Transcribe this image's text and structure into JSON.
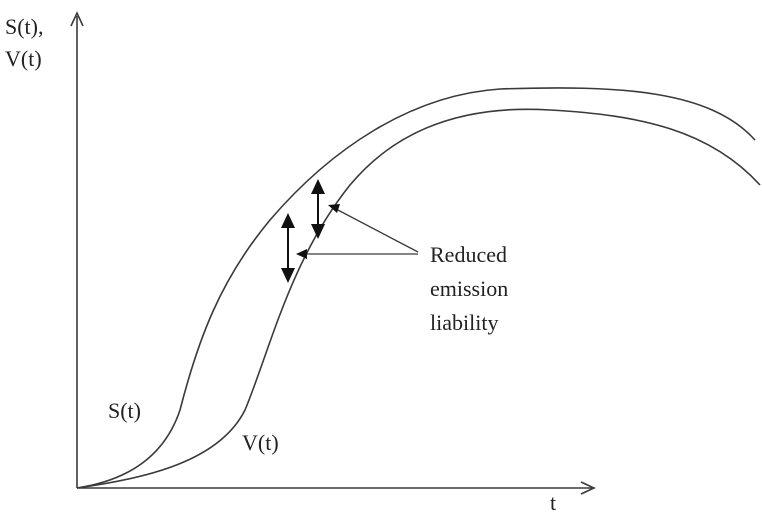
{
  "chart_data": {
    "type": "line",
    "title": "",
    "ylabel_lines": [
      "S(t),",
      "V(t)"
    ],
    "xlabel": "t",
    "grid": false,
    "series": [
      {
        "name": "S(t)"
      },
      {
        "name": "V(t)"
      }
    ],
    "annotation": {
      "lines": [
        "Reduced",
        "emission",
        "liability"
      ]
    }
  }
}
